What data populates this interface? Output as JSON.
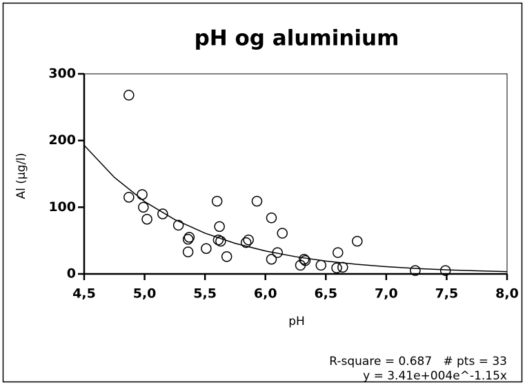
{
  "chart_data": {
    "type": "scatter",
    "title": "pH og aluminium",
    "x_label": "pH",
    "y_label": "Al (µg/l)",
    "annotations": [
      "R-square = 0.687   # pts = 33",
      "y = 3.41e+004e^-1.15x"
    ],
    "x": [
      4.87,
      4.87,
      4.98,
      4.99,
      5.02,
      5.15,
      5.28,
      5.36,
      5.37,
      5.36,
      5.51,
      5.6,
      5.61,
      5.62,
      5.63,
      5.68,
      5.84,
      5.86,
      5.93,
      6.05,
      6.05,
      6.1,
      6.14,
      6.29,
      6.32,
      6.33,
      6.46,
      6.6,
      6.59,
      6.64,
      6.76,
      7.24,
      7.49
    ],
    "values": [
      268,
      115,
      119,
      100,
      82,
      90,
      73,
      52,
      55,
      33,
      38,
      109,
      51,
      71,
      49,
      26,
      47,
      51,
      109,
      84,
      22,
      32,
      61,
      13,
      22,
      20,
      13,
      32,
      9,
      10,
      49,
      5,
      5
    ],
    "color": "#000000",
    "fit_curve": {
      "x": [
        4.5,
        4.75,
        5.0,
        5.25,
        5.5,
        5.75,
        6.0,
        6.25,
        6.5,
        6.75,
        7.0,
        7.25,
        7.5,
        7.75,
        8.0
      ],
      "values": [
        192.8,
        144.7,
        108.5,
        81.4,
        61.1,
        45.8,
        34.4,
        25.8,
        19.3,
        14.5,
        10.9,
        8.2,
        6.1,
        4.6,
        3.5
      ]
    },
    "xlim": [
      4.5,
      8.0
    ],
    "xticks": [
      {
        "value": 4.5,
        "label": "4,5"
      },
      {
        "value": 5.0,
        "label": "5,0"
      },
      {
        "value": 5.5,
        "label": "5,5"
      },
      {
        "value": 6.0,
        "label": "6,0"
      },
      {
        "value": 6.5,
        "label": "6,5"
      },
      {
        "value": 7.0,
        "label": "7,0"
      },
      {
        "value": 7.5,
        "label": "7,5"
      },
      {
        "value": 8.0,
        "label": "8,0"
      }
    ],
    "ylim": [
      0,
      300
    ],
    "yticks": [
      0,
      100,
      200,
      300
    ],
    "grid": false
  }
}
